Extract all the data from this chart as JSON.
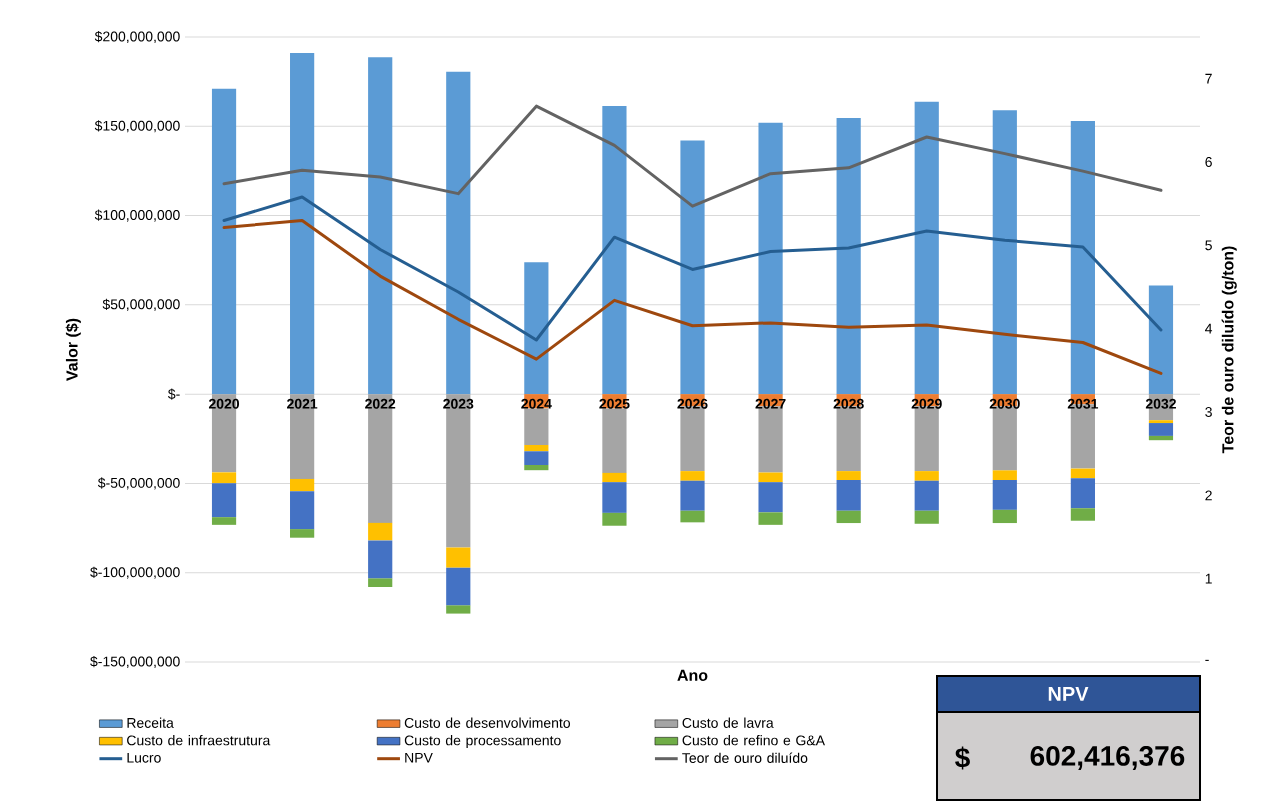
{
  "chart_data": {
    "type": "bar",
    "stacked": true,
    "categories": [
      "2020",
      "2021",
      "2022",
      "2023",
      "2024",
      "2025",
      "2026",
      "2027",
      "2028",
      "2029",
      "2030",
      "2031",
      "2032"
    ],
    "series": [
      {
        "name": "Receita",
        "color": "#5b9bd5",
        "values": [
          171000000,
          191000000,
          188600000,
          180600000,
          73900000,
          161300000,
          142000000,
          152000000,
          154600000,
          163800000,
          159000000,
          153000000,
          60900000
        ]
      },
      {
        "name": "Custo de desenvolvimento",
        "color": "#ed7d31",
        "values": [
          0,
          0,
          0,
          0,
          -8000000,
          -8000000,
          -6800000,
          -6800000,
          -6800000,
          -6800000,
          -6800000,
          -5600000,
          0
        ]
      },
      {
        "name": "Custo de lavra",
        "color": "#a5a5a5",
        "values": [
          -43800000,
          -47500000,
          -72100000,
          -85900000,
          -20500000,
          -36100000,
          -36300000,
          -37100000,
          -36300000,
          -36300000,
          -35900000,
          -36100000,
          -14600000
        ]
      },
      {
        "name": "Custo de infraestrutura",
        "color": "#ffc000",
        "values": [
          -6100000,
          -6900000,
          -9800000,
          -11300000,
          -3500000,
          -5200000,
          -5400000,
          -5400000,
          -5000000,
          -5400000,
          -5400000,
          -5400000,
          -1600000
        ]
      },
      {
        "name": "Custo de processamento",
        "color": "#4472c4",
        "values": [
          -19000000,
          -21200000,
          -21300000,
          -21100000,
          -7700000,
          -17200000,
          -16800000,
          -16900000,
          -17200000,
          -16800000,
          -16700000,
          -16800000,
          -7200000
        ]
      },
      {
        "name": "Custo de refino e G&A",
        "color": "#70ad47",
        "values": [
          -4300000,
          -4800000,
          -4800000,
          -4600000,
          -2900000,
          -7200000,
          -6500000,
          -7000000,
          -6900000,
          -7300000,
          -7400000,
          -7000000,
          -2400000
        ]
      },
      {
        "name": "Lucro",
        "type": "line",
        "color": "#255e91",
        "values": [
          97200000,
          110400000,
          81000000,
          57200000,
          30300000,
          87900000,
          69800000,
          79900000,
          81800000,
          91400000,
          86200000,
          82400000,
          35900000
        ]
      },
      {
        "name": "NPV",
        "type": "line",
        "color": "#9e480e",
        "values": [
          93300000,
          97200000,
          66100000,
          41900000,
          19600000,
          52500000,
          38300000,
          39900000,
          37500000,
          38700000,
          33500000,
          28900000,
          11600000
        ]
      },
      {
        "name": "Teor de ouro diluído",
        "type": "line",
        "axis": "y2",
        "color": "#636363",
        "values": [
          5.74,
          5.9,
          5.82,
          5.62,
          6.67,
          6.2,
          5.47,
          5.86,
          5.93,
          6.3,
          6.1,
          5.89,
          5.66
        ]
      }
    ],
    "xlabel": "Ano",
    "ylabel": "Valor ($)",
    "y2label": "Teor de ouro diluído (g/ton)",
    "ylim": [
      -150000000,
      200000000
    ],
    "yticks": [
      {
        "value": -150000000,
        "label": "$-150,000,000"
      },
      {
        "value": -100000000,
        "label": "$-100,000,000"
      },
      {
        "value": -50000000,
        "label": "$-50,000,000"
      },
      {
        "value": 0,
        "label": "$-"
      },
      {
        "value": 50000000,
        "label": "$50,000,000"
      },
      {
        "value": 100000000,
        "label": "$100,000,000"
      },
      {
        "value": 150000000,
        "label": "$150,000,000"
      },
      {
        "value": 200000000,
        "label": "$200,000,000"
      }
    ],
    "y2lim": [
      0,
      7.5
    ],
    "y2ticks": [
      {
        "value": 0,
        "label": "-"
      },
      1,
      2,
      3,
      4,
      5,
      6,
      7
    ],
    "grid": "y",
    "legend": "bottom",
    "annotations": [
      "NPV",
      "$",
      "602,416,376"
    ]
  }
}
